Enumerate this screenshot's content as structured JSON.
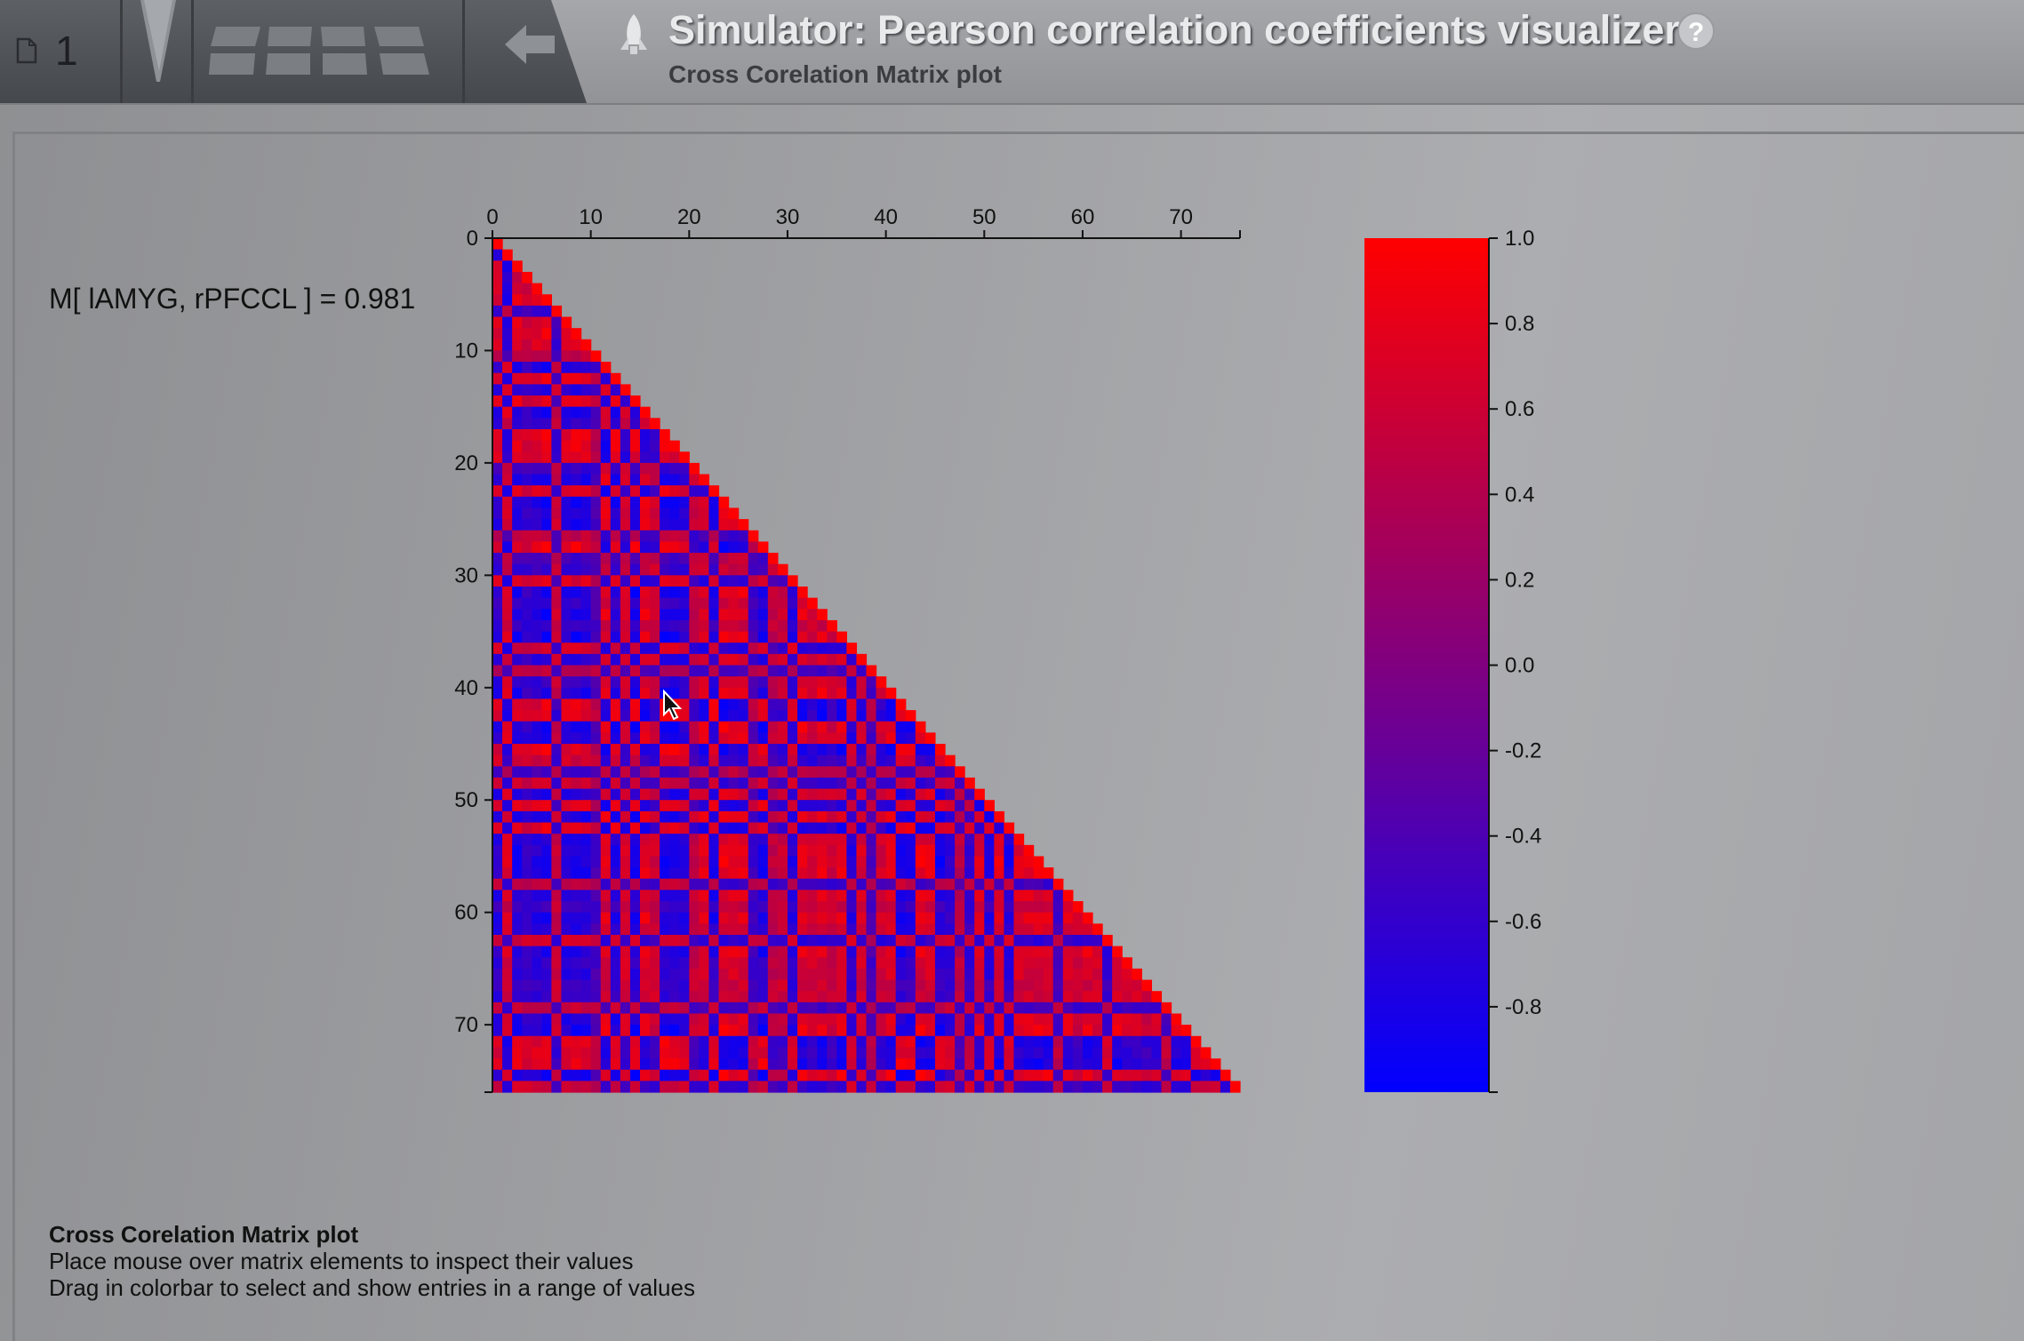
{
  "nav": {
    "page_number": "1",
    "icons": [
      "page-icon",
      "funnel-icon",
      "grid-icon",
      "back-arrow-icon"
    ]
  },
  "header": {
    "title": "Simulator: Pearson correlation coefficients visualizer",
    "subtitle": "Cross Corelation Matrix plot",
    "icons": [
      "rocket-icon",
      "help-icon"
    ],
    "help_label": "?"
  },
  "readout": "M[ lAMYG, rPFCCL ] = 0.981",
  "footer": {
    "title": "Cross Corelation Matrix plot",
    "line1": "Place mouse over matrix elements to inspect their values",
    "line2": "Drag in colorbar to select and show entries in a range of values"
  },
  "colors": {
    "high": "#ff0000",
    "mid": "#800080",
    "low": "#0000ff"
  },
  "chart_data": {
    "type": "heatmap",
    "matrix_size": 76,
    "shape": "lower-triangular",
    "x_ticks": [
      "0",
      "10",
      "20",
      "30",
      "40",
      "50",
      "60",
      "70"
    ],
    "y_ticks": [
      "0",
      "10",
      "20",
      "30",
      "40",
      "50",
      "60",
      "70"
    ],
    "xlim": [
      0,
      76
    ],
    "ylim": [
      0,
      76
    ],
    "x_axis_position": "top",
    "colorbar": {
      "range": [
        -1.0,
        1.0
      ],
      "ticks": [
        "1.0",
        "0.8",
        "0.6",
        "0.4",
        "0.2",
        "0.0",
        "-0.2",
        "-0.4",
        "-0.6",
        "-0.8"
      ],
      "colormap": [
        "#0000ff",
        "#ff0000"
      ]
    },
    "highlighted": {
      "row_label": "lAMYG",
      "col_label": "rPFCCL",
      "value": 0.981
    }
  }
}
